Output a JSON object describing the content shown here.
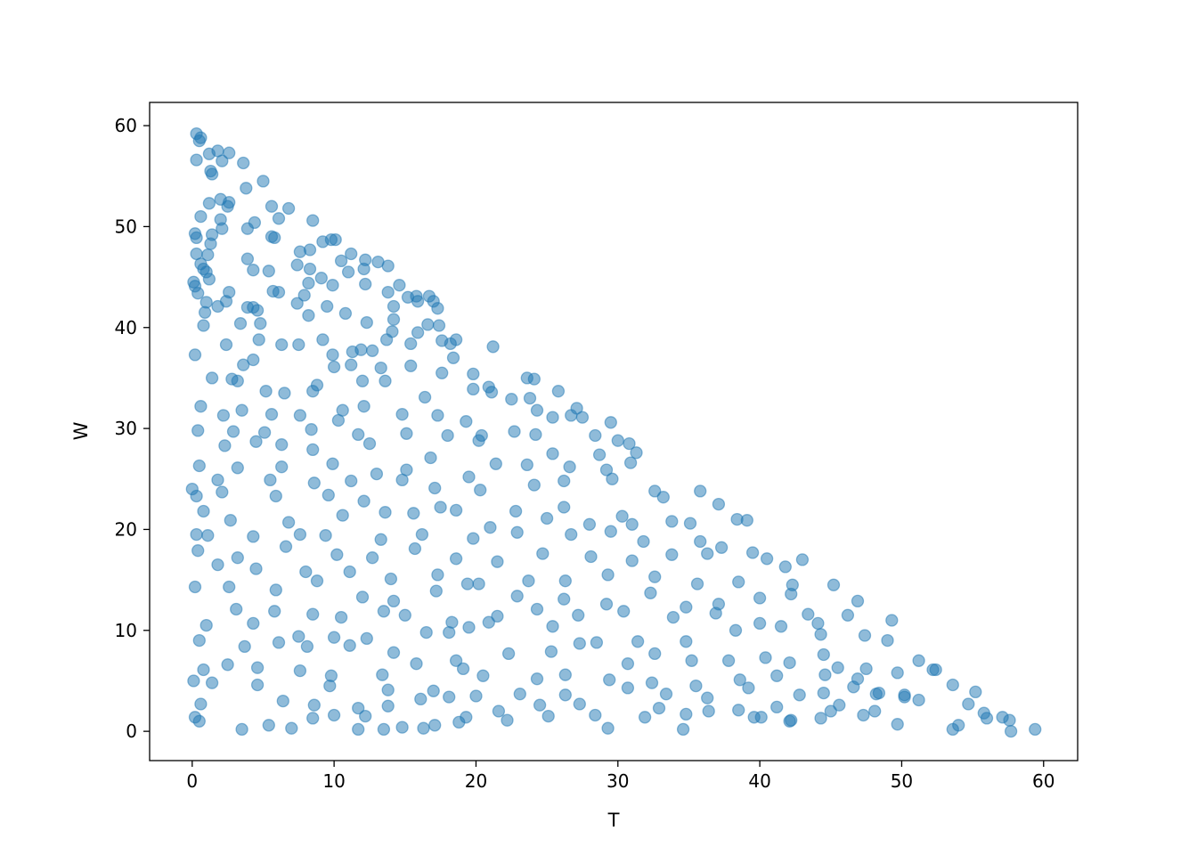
{
  "chart_data": {
    "type": "scatter",
    "title": "",
    "xlabel": "T",
    "ylabel": "W",
    "xlim": [
      -3,
      62.4
    ],
    "ylim": [
      -2.9,
      62.3
    ],
    "xticks": [
      "0",
      "10",
      "20",
      "30",
      "40",
      "50",
      "60"
    ],
    "yticks": [
      "0",
      "10",
      "20",
      "30",
      "40",
      "50",
      "60"
    ],
    "grid": false,
    "marker_color": "#1f77b4",
    "marker_alpha": 0.5,
    "points": [
      [
        0.3,
        59.2
      ],
      [
        0.5,
        58.5
      ],
      [
        0.6,
        58.8
      ],
      [
        0.3,
        56.6
      ],
      [
        1.2,
        57.2
      ],
      [
        1.8,
        57.5
      ],
      [
        2.6,
        57.3
      ],
      [
        3.6,
        56.3
      ],
      [
        1.3,
        55.5
      ],
      [
        1.4,
        55.2
      ],
      [
        2.1,
        56.5
      ],
      [
        5,
        54.5
      ],
      [
        3.8,
        53.8
      ],
      [
        1.2,
        52.3
      ],
      [
        2,
        52.7
      ],
      [
        2.6,
        52.4
      ],
      [
        2.5,
        52
      ],
      [
        5.6,
        52
      ],
      [
        6.8,
        51.8
      ],
      [
        0.6,
        51
      ],
      [
        6.1,
        50.8
      ],
      [
        8.5,
        50.6
      ],
      [
        2,
        50.7
      ],
      [
        2.1,
        49.8
      ],
      [
        3.9,
        49.8
      ],
      [
        4.4,
        50.4
      ],
      [
        1.4,
        49.2
      ],
      [
        0.2,
        49.3
      ],
      [
        0.3,
        48.9
      ],
      [
        5.6,
        49
      ],
      [
        5.8,
        48.9
      ],
      [
        9.2,
        48.5
      ],
      [
        9.8,
        48.7
      ],
      [
        10.1,
        48.7
      ],
      [
        1.3,
        48.3
      ],
      [
        1.1,
        47.2
      ],
      [
        0.3,
        47.3
      ],
      [
        3.9,
        46.8
      ],
      [
        7.6,
        47.5
      ],
      [
        8.3,
        47.7
      ],
      [
        11.2,
        47.3
      ],
      [
        12.2,
        46.7
      ],
      [
        10.5,
        46.6
      ],
      [
        13.1,
        46.5
      ],
      [
        13.8,
        46.1
      ],
      [
        0.6,
        46.3
      ],
      [
        0.8,
        45.8
      ],
      [
        1,
        45.5
      ],
      [
        4.3,
        45.7
      ],
      [
        5.4,
        45.6
      ],
      [
        7.4,
        46.2
      ],
      [
        8.3,
        45.8
      ],
      [
        9.1,
        44.9
      ],
      [
        11,
        45.5
      ],
      [
        12.1,
        45.8
      ],
      [
        14.6,
        44.2
      ],
      [
        0.1,
        44.5
      ],
      [
        0.2,
        44.1
      ],
      [
        1.2,
        44.8
      ],
      [
        8.2,
        44.4
      ],
      [
        9.9,
        44.2
      ],
      [
        12.2,
        44.3
      ],
      [
        0.4,
        43.4
      ],
      [
        2.6,
        43.5
      ],
      [
        5.7,
        43.6
      ],
      [
        6.1,
        43.5
      ],
      [
        7.9,
        43.2
      ],
      [
        13.8,
        43.5
      ],
      [
        15.2,
        43
      ],
      [
        15.8,
        43.1
      ],
      [
        16.7,
        43.1
      ],
      [
        1,
        42.5
      ],
      [
        2.4,
        42.6
      ],
      [
        3.9,
        42
      ],
      [
        4.3,
        42
      ],
      [
        7.4,
        42.4
      ],
      [
        9.5,
        42.1
      ],
      [
        14.2,
        42.1
      ],
      [
        15.9,
        42.6
      ],
      [
        17,
        42.6
      ],
      [
        17.3,
        41.9
      ],
      [
        0.9,
        41.5
      ],
      [
        1.8,
        42.1
      ],
      [
        4.6,
        41.7
      ],
      [
        8.2,
        41.2
      ],
      [
        10.8,
        41.4
      ],
      [
        14.2,
        40.8
      ],
      [
        0.8,
        40.2
      ],
      [
        3.4,
        40.4
      ],
      [
        4.8,
        40.4
      ],
      [
        12.3,
        40.5
      ],
      [
        16.6,
        40.3
      ],
      [
        17.4,
        40.2
      ],
      [
        13.7,
        38.8
      ],
      [
        14.1,
        39.6
      ],
      [
        15.9,
        39.5
      ],
      [
        18.6,
        38.8
      ],
      [
        2.4,
        38.3
      ],
      [
        4.7,
        38.8
      ],
      [
        6.3,
        38.3
      ],
      [
        7.5,
        38.3
      ],
      [
        9.2,
        38.8
      ],
      [
        15.4,
        38.4
      ],
      [
        17.6,
        38.7
      ],
      [
        21.2,
        38.1
      ],
      [
        18.2,
        38.4
      ],
      [
        0.2,
        37.3
      ],
      [
        9.9,
        37.3
      ],
      [
        11.3,
        37.6
      ],
      [
        11.9,
        37.8
      ],
      [
        12.7,
        37.7
      ],
      [
        18.4,
        37
      ],
      [
        4.3,
        36.8
      ],
      [
        3.6,
        36.3
      ],
      [
        10,
        36.1
      ],
      [
        11.2,
        36.3
      ],
      [
        13.3,
        36
      ],
      [
        15.4,
        36.2
      ],
      [
        17.6,
        35.5
      ],
      [
        19.8,
        35.4
      ],
      [
        1.4,
        35
      ],
      [
        2.8,
        34.9
      ],
      [
        3.2,
        34.7
      ],
      [
        8.8,
        34.3
      ],
      [
        12,
        34.7
      ],
      [
        13.6,
        34.7
      ],
      [
        20.9,
        34.1
      ],
      [
        23.6,
        35
      ],
      [
        24.1,
        34.9
      ],
      [
        5.2,
        33.7
      ],
      [
        6.5,
        33.5
      ],
      [
        8.5,
        33.7
      ],
      [
        16.4,
        33.1
      ],
      [
        19.8,
        33.9
      ],
      [
        21.1,
        33.6
      ],
      [
        23.8,
        33
      ],
      [
        22.5,
        32.9
      ],
      [
        25.8,
        33.7
      ],
      [
        0.6,
        32.2
      ],
      [
        2.2,
        31.3
      ],
      [
        3.5,
        31.8
      ],
      [
        5.6,
        31.4
      ],
      [
        7.6,
        31.3
      ],
      [
        10.6,
        31.8
      ],
      [
        12.1,
        32.2
      ],
      [
        14.8,
        31.4
      ],
      [
        17.3,
        31.3
      ],
      [
        19.3,
        30.7
      ],
      [
        24.3,
        31.8
      ],
      [
        25.4,
        31.1
      ],
      [
        26.7,
        31.3
      ],
      [
        27.1,
        32
      ],
      [
        27.5,
        31.1
      ],
      [
        0.4,
        29.8
      ],
      [
        2.9,
        29.7
      ],
      [
        5.1,
        29.6
      ],
      [
        8.4,
        29.9
      ],
      [
        10.3,
        30.8
      ],
      [
        11.7,
        29.4
      ],
      [
        15.1,
        29.5
      ],
      [
        18,
        29.3
      ],
      [
        20.4,
        29.3
      ],
      [
        22.7,
        29.7
      ],
      [
        24.2,
        29.4
      ],
      [
        29.5,
        30.6
      ],
      [
        28.4,
        29.3
      ],
      [
        30,
        28.8
      ],
      [
        2.3,
        28.3
      ],
      [
        4.5,
        28.7
      ],
      [
        6.3,
        28.4
      ],
      [
        8.5,
        27.9
      ],
      [
        12.5,
        28.5
      ],
      [
        16.8,
        27.1
      ],
      [
        20.2,
        28.8
      ],
      [
        25.4,
        27.5
      ],
      [
        28.7,
        27.4
      ],
      [
        31.3,
        27.6
      ],
      [
        30.8,
        28.5
      ],
      [
        0.5,
        26.3
      ],
      [
        3.2,
        26.1
      ],
      [
        6.3,
        26.2
      ],
      [
        9.9,
        26.5
      ],
      [
        13,
        25.5
      ],
      [
        15.1,
        25.9
      ],
      [
        19.5,
        25.2
      ],
      [
        21.4,
        26.5
      ],
      [
        23.6,
        26.4
      ],
      [
        26.6,
        26.2
      ],
      [
        29.2,
        25.9
      ],
      [
        30.9,
        26.6
      ],
      [
        1.8,
        24.9
      ],
      [
        5.5,
        24.9
      ],
      [
        8.6,
        24.6
      ],
      [
        11.2,
        24.8
      ],
      [
        14.8,
        24.9
      ],
      [
        17.1,
        24.1
      ],
      [
        20.3,
        23.9
      ],
      [
        24.1,
        24.4
      ],
      [
        26.2,
        24.8
      ],
      [
        29.6,
        25
      ],
      [
        32.6,
        23.8
      ],
      [
        33.2,
        23.2
      ],
      [
        0,
        24
      ],
      [
        0.3,
        23.3
      ],
      [
        2.1,
        23.7
      ],
      [
        5.9,
        23.3
      ],
      [
        9.6,
        23.4
      ],
      [
        12.1,
        22.8
      ],
      [
        17.5,
        22.2
      ],
      [
        22.8,
        21.8
      ],
      [
        26.2,
        22.2
      ],
      [
        30.3,
        21.3
      ],
      [
        35.8,
        23.8
      ],
      [
        37.1,
        22.5
      ],
      [
        0.8,
        21.8
      ],
      [
        2.7,
        20.9
      ],
      [
        6.8,
        20.7
      ],
      [
        10.6,
        21.4
      ],
      [
        13.6,
        21.7
      ],
      [
        15.6,
        21.6
      ],
      [
        18.6,
        21.9
      ],
      [
        21,
        20.2
      ],
      [
        25,
        21.1
      ],
      [
        28,
        20.5
      ],
      [
        31,
        20.5
      ],
      [
        33.8,
        20.8
      ],
      [
        35.1,
        20.6
      ],
      [
        38.4,
        21
      ],
      [
        39.1,
        20.9
      ],
      [
        0.3,
        19.5
      ],
      [
        1.1,
        19.4
      ],
      [
        4.3,
        19.3
      ],
      [
        7.6,
        19.5
      ],
      [
        9.4,
        19.4
      ],
      [
        13.3,
        19
      ],
      [
        16.2,
        19.5
      ],
      [
        19.8,
        19.1
      ],
      [
        22.9,
        19.7
      ],
      [
        26.7,
        19.5
      ],
      [
        29.5,
        19.8
      ],
      [
        31.8,
        18.8
      ],
      [
        35.8,
        18.8
      ],
      [
        37.3,
        18.2
      ],
      [
        0.4,
        17.9
      ],
      [
        3.2,
        17.2
      ],
      [
        6.6,
        18.3
      ],
      [
        10.2,
        17.5
      ],
      [
        12.7,
        17.2
      ],
      [
        15.7,
        18.1
      ],
      [
        18.6,
        17.1
      ],
      [
        21.5,
        16.8
      ],
      [
        24.7,
        17.6
      ],
      [
        28.1,
        17.3
      ],
      [
        31,
        16.9
      ],
      [
        33.8,
        17.5
      ],
      [
        36.3,
        17.6
      ],
      [
        39.5,
        17.7
      ],
      [
        40.5,
        17.1
      ],
      [
        1.8,
        16.5
      ],
      [
        4.5,
        16.1
      ],
      [
        8,
        15.8
      ],
      [
        11.1,
        15.8
      ],
      [
        14,
        15.1
      ],
      [
        17.3,
        15.5
      ],
      [
        20.2,
        14.6
      ],
      [
        23.7,
        14.9
      ],
      [
        26.3,
        14.9
      ],
      [
        29.3,
        15.5
      ],
      [
        32.6,
        15.3
      ],
      [
        35.6,
        14.6
      ],
      [
        38.5,
        14.8
      ],
      [
        41.8,
        16.3
      ],
      [
        43,
        17
      ],
      [
        0.2,
        14.3
      ],
      [
        2.6,
        14.3
      ],
      [
        5.9,
        14
      ],
      [
        8.8,
        14.9
      ],
      [
        12,
        13.3
      ],
      [
        14.2,
        12.9
      ],
      [
        17.2,
        13.9
      ],
      [
        19.4,
        14.6
      ],
      [
        22.9,
        13.4
      ],
      [
        26.2,
        13.1
      ],
      [
        29.2,
        12.6
      ],
      [
        32.3,
        13.7
      ],
      [
        34.8,
        12.3
      ],
      [
        37.1,
        12.6
      ],
      [
        40,
        13.2
      ],
      [
        42.2,
        13.6
      ],
      [
        45.2,
        14.5
      ],
      [
        46.9,
        12.9
      ],
      [
        3.1,
        12.1
      ],
      [
        5.8,
        11.9
      ],
      [
        8.5,
        11.6
      ],
      [
        10.5,
        11.3
      ],
      [
        13.5,
        11.9
      ],
      [
        15,
        11.5
      ],
      [
        18.3,
        10.8
      ],
      [
        21.5,
        11.4
      ],
      [
        24.3,
        12.1
      ],
      [
        27.2,
        11.5
      ],
      [
        30.4,
        11.9
      ],
      [
        33.9,
        11.3
      ],
      [
        36.9,
        11.7
      ],
      [
        41.5,
        10.4
      ],
      [
        43.4,
        11.6
      ],
      [
        46.2,
        11.5
      ],
      [
        49.3,
        11
      ],
      [
        1,
        10.5
      ],
      [
        4.3,
        10.7
      ],
      [
        7.5,
        9.4
      ],
      [
        10,
        9.3
      ],
      [
        12.3,
        9.2
      ],
      [
        16.5,
        9.8
      ],
      [
        18.1,
        9.8
      ],
      [
        19.5,
        10.3
      ],
      [
        20.9,
        10.8
      ],
      [
        25.4,
        10.4
      ],
      [
        28.5,
        8.8
      ],
      [
        31.4,
        8.9
      ],
      [
        34.8,
        8.9
      ],
      [
        38.3,
        10
      ],
      [
        40,
        10.7
      ],
      [
        44.3,
        9.6
      ],
      [
        47.4,
        9.5
      ],
      [
        49,
        9
      ],
      [
        0.5,
        9
      ],
      [
        3.7,
        8.4
      ],
      [
        6.1,
        8.8
      ],
      [
        8.1,
        8.4
      ],
      [
        11.1,
        8.5
      ],
      [
        14.2,
        7.8
      ],
      [
        18.6,
        7
      ],
      [
        22.3,
        7.7
      ],
      [
        25.3,
        7.9
      ],
      [
        27.3,
        8.7
      ],
      [
        30.7,
        6.7
      ],
      [
        32.6,
        7.7
      ],
      [
        35.2,
        7
      ],
      [
        37.8,
        7
      ],
      [
        40.4,
        7.3
      ],
      [
        42.1,
        6.8
      ],
      [
        44.5,
        7.6
      ],
      [
        47.5,
        6.2
      ],
      [
        51.2,
        7
      ],
      [
        52.2,
        6.1
      ],
      [
        0.8,
        6.1
      ],
      [
        2.5,
        6.6
      ],
      [
        4.6,
        6.3
      ],
      [
        7.6,
        6
      ],
      [
        9.8,
        5.5
      ],
      [
        13.4,
        5.6
      ],
      [
        15.8,
        6.7
      ],
      [
        19.1,
        6.2
      ],
      [
        20.5,
        5.5
      ],
      [
        24.3,
        5.2
      ],
      [
        26.3,
        5.6
      ],
      [
        29.4,
        5.1
      ],
      [
        32.4,
        4.8
      ],
      [
        35.5,
        4.5
      ],
      [
        38.6,
        5.1
      ],
      [
        41.2,
        5.5
      ],
      [
        44.6,
        5.6
      ],
      [
        46.6,
        4.4
      ],
      [
        49.7,
        5.8
      ],
      [
        52.4,
        6.1
      ],
      [
        0.1,
        5
      ],
      [
        1.4,
        4.8
      ],
      [
        4.6,
        4.6
      ],
      [
        9.7,
        4.5
      ],
      [
        13.8,
        4.1
      ],
      [
        17,
        4
      ],
      [
        20,
        3.5
      ],
      [
        23.1,
        3.7
      ],
      [
        26.3,
        3.6
      ],
      [
        30.7,
        4.3
      ],
      [
        33.4,
        3.7
      ],
      [
        36.3,
        3.3
      ],
      [
        39.2,
        4.3
      ],
      [
        42.8,
        3.6
      ],
      [
        44.5,
        3.8
      ],
      [
        48.2,
        3.7
      ],
      [
        50.2,
        3.6
      ],
      [
        53.6,
        4.6
      ],
      [
        55.2,
        3.9
      ],
      [
        0.6,
        2.7
      ],
      [
        6.4,
        3
      ],
      [
        8.6,
        2.6
      ],
      [
        11.7,
        2.3
      ],
      [
        13.8,
        2.5
      ],
      [
        16.1,
        3.2
      ],
      [
        18.1,
        3.4
      ],
      [
        21.6,
        2
      ],
      [
        24.5,
        2.6
      ],
      [
        27.3,
        2.7
      ],
      [
        32.9,
        2.3
      ],
      [
        36.4,
        2
      ],
      [
        38.5,
        2.1
      ],
      [
        41.2,
        2.4
      ],
      [
        45.6,
        2.6
      ],
      [
        48.1,
        2
      ],
      [
        51.2,
        3.1
      ],
      [
        54.7,
        2.7
      ],
      [
        0.2,
        1.4
      ],
      [
        5.4,
        0.6
      ],
      [
        8.5,
        1.3
      ],
      [
        10,
        1.6
      ],
      [
        12.2,
        1.5
      ],
      [
        14.8,
        0.4
      ],
      [
        17.1,
        0.6
      ],
      [
        18.8,
        0.9
      ],
      [
        22.2,
        1.1
      ],
      [
        25.1,
        1.5
      ],
      [
        28.4,
        1.6
      ],
      [
        31.9,
        1.4
      ],
      [
        34.8,
        1.7
      ],
      [
        39.6,
        1.4
      ],
      [
        42.1,
        1
      ],
      [
        44.3,
        1.3
      ],
      [
        47.3,
        1.6
      ],
      [
        50.2,
        3.4
      ],
      [
        53.6,
        0.2
      ],
      [
        56,
        1.3
      ],
      [
        57.6,
        1.1
      ],
      [
        59.4,
        0.2
      ],
      [
        57.7,
        0
      ],
      [
        0.5,
        1
      ],
      [
        3.5,
        0.2
      ],
      [
        7,
        0.3
      ],
      [
        11.7,
        0.2
      ],
      [
        13.5,
        0.2
      ],
      [
        16.3,
        0.3
      ],
      [
        19.3,
        1.4
      ],
      [
        29.3,
        0.3
      ],
      [
        34.6,
        0.2
      ],
      [
        40.1,
        1.4
      ],
      [
        42.2,
        1.1
      ],
      [
        45,
        2
      ],
      [
        49.7,
        0.7
      ],
      [
        54,
        0.6
      ],
      [
        55.8,
        1.8
      ],
      [
        57.1,
        1.4
      ],
      [
        48.4,
        3.8
      ],
      [
        46.9,
        5.2
      ],
      [
        44.1,
        10.7
      ],
      [
        45.5,
        6.3
      ],
      [
        42.3,
        14.5
      ]
    ]
  }
}
